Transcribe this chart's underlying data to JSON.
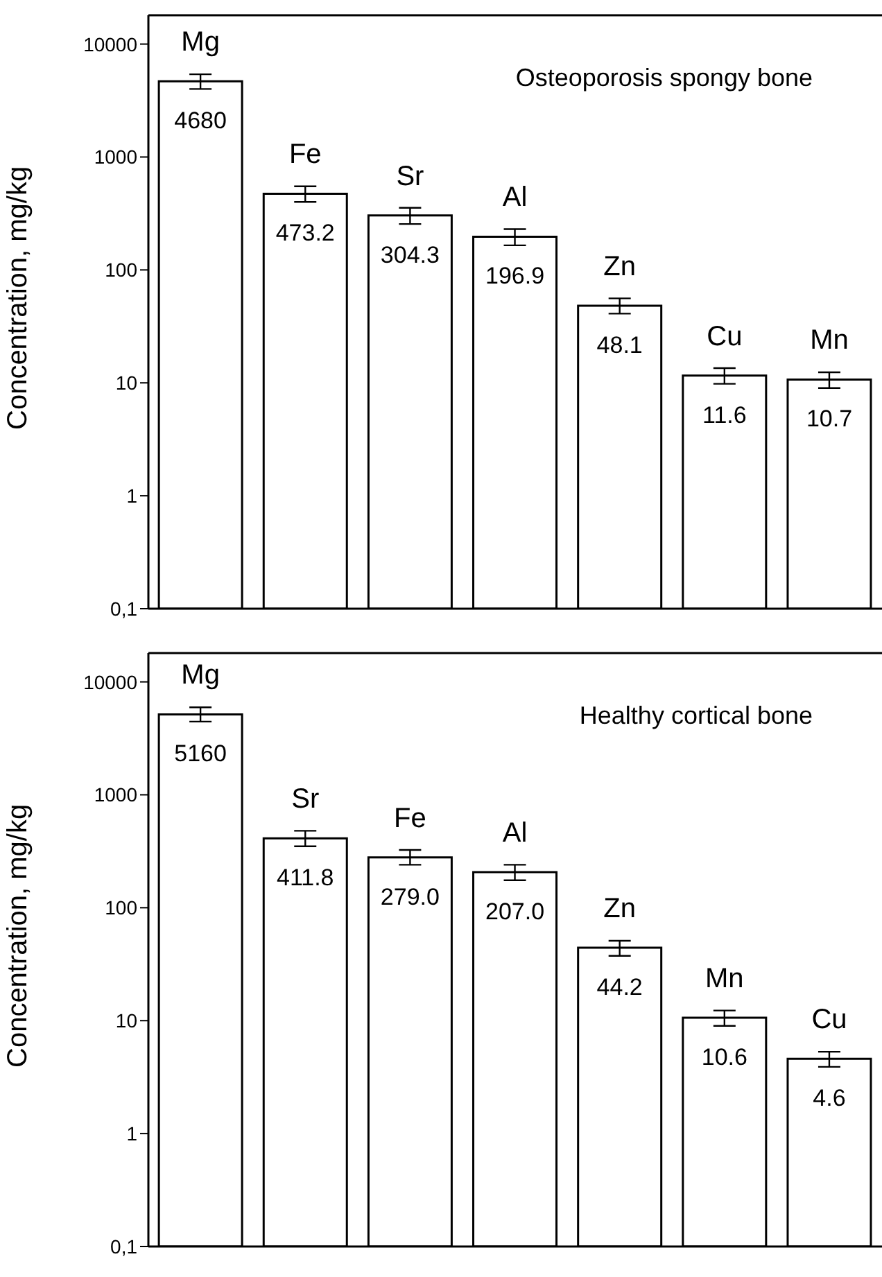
{
  "chart_data": [
    {
      "type": "bar",
      "title": "Osteoporosis spongy bone",
      "ylabel": "Concentration, mg/kg",
      "categories": [
        "Mg",
        "Fe",
        "Sr",
        "Al",
        "Zn",
        "Cu",
        "Mn"
      ],
      "values": [
        4680,
        473.2,
        304.3,
        196.9,
        48.1,
        11.6,
        10.7
      ],
      "errors": [
        [
          4000,
          5400
        ],
        [
          400,
          550
        ],
        [
          255,
          355
        ],
        [
          165,
          230
        ],
        [
          41,
          56
        ],
        [
          9.8,
          13.5
        ],
        [
          9,
          12.4
        ]
      ],
      "color": "#ffffff",
      "data_labels": true,
      "log": true,
      "ylim": [
        0.1,
        18000
      ],
      "yticks": [
        {
          "value": 0.1,
          "label": "0,1"
        },
        1,
        10,
        100,
        1000,
        10000
      ],
      "tick_labels": "y",
      "grid": false,
      "legend": false
    },
    {
      "type": "bar",
      "title": "Healthy cortical bone",
      "ylabel": "Concentration, mg/kg",
      "categories": [
        "Mg",
        "Sr",
        "Fe",
        "Al",
        "Zn",
        "Mn",
        "Cu"
      ],
      "values": [
        5160,
        411.8,
        279.0,
        207.0,
        44.2,
        10.6,
        4.6
      ],
      "errors": [
        [
          4450,
          5950
        ],
        [
          350,
          480
        ],
        [
          240,
          325
        ],
        [
          175,
          240
        ],
        [
          37.5,
          51
        ],
        [
          9,
          12.3
        ],
        [
          3.9,
          5.3
        ]
      ],
      "value_labels": [
        "5160",
        "411.8",
        "279.0",
        "207.0",
        "44.2",
        "10.6",
        "4.6"
      ],
      "color": "#ffffff",
      "log": true,
      "ylim": [
        0.1,
        18000
      ],
      "yticks": [
        {
          "value": 0.1,
          "label": "0,1"
        },
        1,
        10,
        100,
        1000,
        10000
      ],
      "tick_labels": "y",
      "grid": false,
      "legend": false
    }
  ]
}
